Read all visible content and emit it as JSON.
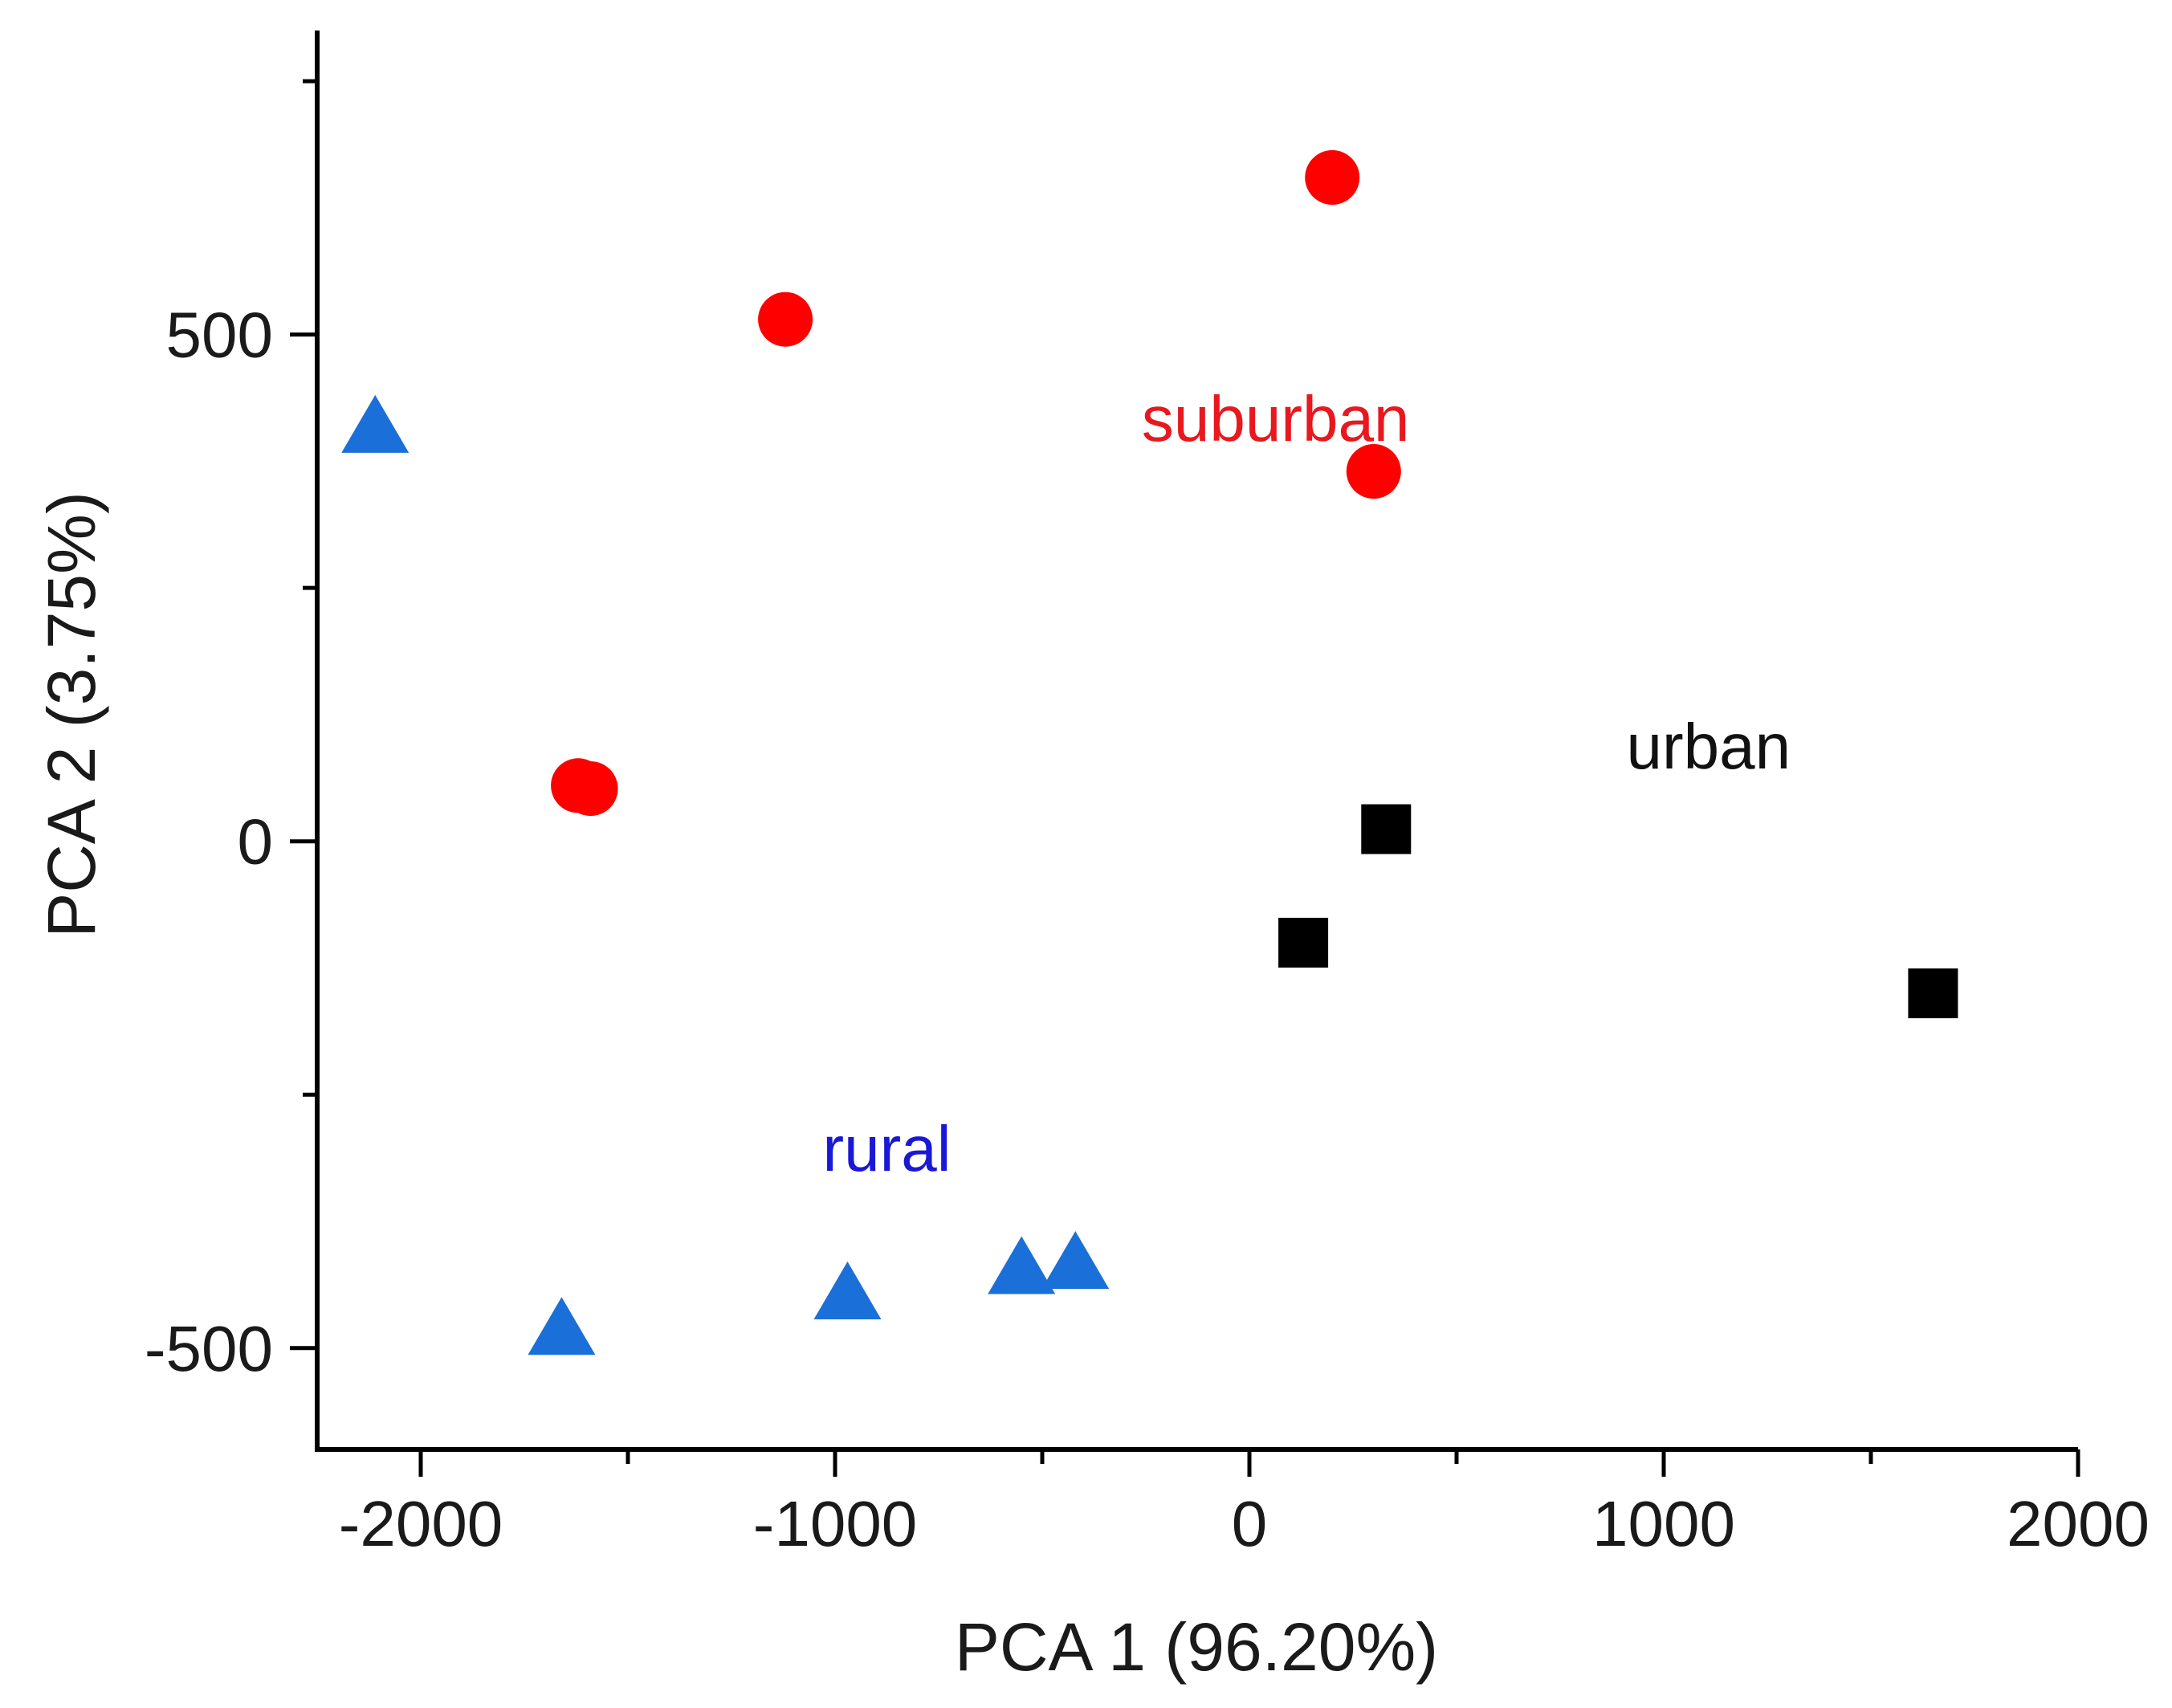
{
  "chart_data": {
    "type": "scatter",
    "xlabel": "PCA 1 (96.20%)",
    "ylabel": "PCA 2 (3.75%)",
    "xlim": [
      -2250,
      2000
    ],
    "ylim": [
      -600,
      800
    ],
    "x_ticks": [
      -2000,
      -1000,
      0,
      1000,
      2000
    ],
    "x_tick_labels": [
      "-2000",
      "-1000",
      "0",
      "1000",
      "2000"
    ],
    "x_minor_ticks": [
      -1500,
      -500,
      500,
      1500
    ],
    "y_ticks": [
      -500,
      0,
      500
    ],
    "y_tick_labels": [
      "-500",
      "0",
      "500"
    ],
    "y_minor_ticks": [
      -250,
      250,
      750
    ],
    "grid": false,
    "series": [
      {
        "name": "suburban",
        "marker": "circle",
        "color": "#ff0000",
        "label_color": "#e8181e",
        "x": [
          200,
          -1120,
          300,
          -1620,
          -1590
        ],
        "y": [
          655,
          515,
          365,
          55,
          52
        ],
        "label_at": [
          -260,
          395
        ]
      },
      {
        "name": "urban",
        "marker": "square",
        "color": "#000000",
        "label_color": "#111111",
        "x": [
          330,
          130,
          1650
        ],
        "y": [
          12,
          -100,
          -150
        ],
        "label_at": [
          910,
          72
        ]
      },
      {
        "name": "rural",
        "marker": "triangle",
        "color": "#1b6fd8",
        "label_color": "#1a18d6",
        "x": [
          -2110,
          -1660,
          -970,
          -550,
          -420
        ],
        "y": [
          405,
          -485,
          -450,
          -425,
          -420
        ],
        "label_at": [
          -1030,
          -325
        ]
      }
    ]
  }
}
